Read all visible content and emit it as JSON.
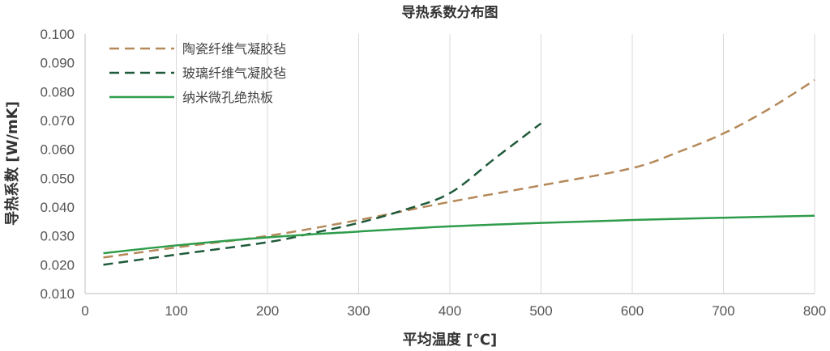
{
  "chart_data": {
    "type": "line",
    "title": "导热系数分布图",
    "xlabel": "平均温度 [℃]",
    "ylabel": "导热系数 [W/mK]",
    "xlim": [
      0,
      800
    ],
    "ylim": [
      0.01,
      0.1
    ],
    "x_ticks": [
      "0",
      "100",
      "200",
      "300",
      "400",
      "500",
      "600",
      "700",
      "800"
    ],
    "y_ticks": [
      "0.010",
      "0.020",
      "0.030",
      "0.040",
      "0.050",
      "0.060",
      "0.070",
      "0.080",
      "0.090",
      "0.100"
    ],
    "grid": "vertical",
    "legend_position": "top-left",
    "series": [
      {
        "name": "陶瓷纤维气凝胶毡",
        "color": "#b5895a",
        "dash": "dashed",
        "x": [
          20,
          100,
          200,
          300,
          400,
          500,
          600,
          650,
          700,
          750,
          800
        ],
        "y": [
          0.0225,
          0.026,
          0.03,
          0.0355,
          0.0418,
          0.0475,
          0.0535,
          0.059,
          0.0655,
          0.074,
          0.084
        ]
      },
      {
        "name": "玻璃纤维气凝胶毡",
        "color": "#1f5a3a",
        "dash": "dashed",
        "x": [
          20,
          100,
          200,
          250,
          300,
          350,
          400,
          450,
          500
        ],
        "y": [
          0.02,
          0.0235,
          0.0278,
          0.031,
          0.0345,
          0.039,
          0.0448,
          0.057,
          0.069
        ]
      },
      {
        "name": "纳米微孔绝热板",
        "color": "#2e9c4a",
        "dash": "solid",
        "x": [
          20,
          100,
          200,
          300,
          400,
          500,
          600,
          700,
          800
        ],
        "y": [
          0.024,
          0.0267,
          0.0295,
          0.0315,
          0.0333,
          0.0345,
          0.0355,
          0.0363,
          0.037
        ]
      }
    ]
  }
}
